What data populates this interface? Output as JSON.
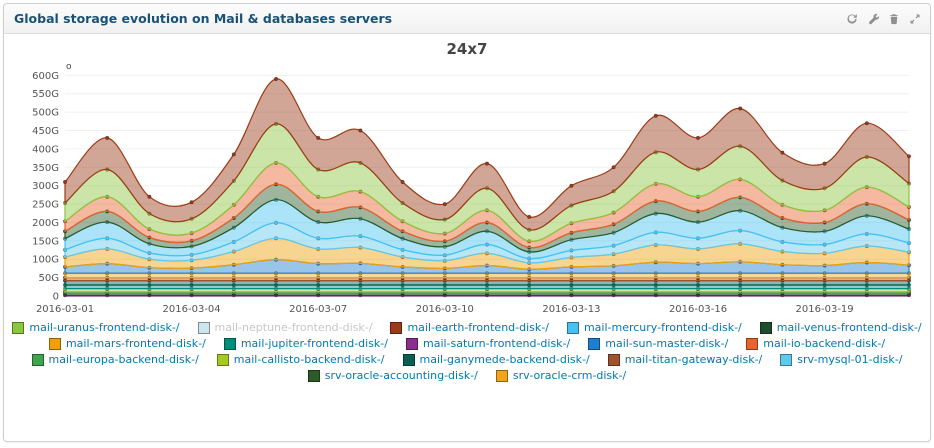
{
  "panel": {
    "title": "Global storage evolution on Mail & databases servers",
    "toolbar_icons": [
      "refresh-icon",
      "wrench-icon",
      "trash-icon",
      "expand-icon"
    ]
  },
  "chart_data": {
    "type": "area",
    "stacked": true,
    "title": "24x7",
    "unit": "G",
    "artifact": "o",
    "grid": false,
    "legend_position": "bottom",
    "legend_rows": [
      5,
      5,
      5,
      2
    ],
    "ylim": [
      0,
      620
    ],
    "y_ticks": [
      0,
      50,
      100,
      150,
      200,
      250,
      300,
      350,
      400,
      450,
      500,
      550,
      600
    ],
    "y_tick_labels": [
      "0",
      "50G",
      "100G",
      "150G",
      "200G",
      "250G",
      "300G",
      "350G",
      "400G",
      "450G",
      "500G",
      "550G",
      "600G"
    ],
    "x": [
      "2016-03-01",
      "2016-03-02",
      "2016-03-03",
      "2016-03-04",
      "2016-03-05",
      "2016-03-06",
      "2016-03-07",
      "2016-03-08",
      "2016-03-09",
      "2016-03-10",
      "2016-03-11",
      "2016-03-12",
      "2016-03-13",
      "2016-03-14",
      "2016-03-15",
      "2016-03-16",
      "2016-03-17",
      "2016-03-18",
      "2016-03-19",
      "2016-03-20",
      "2016-03-21"
    ],
    "x_tick_labels": [
      "2016-03-01",
      "2016-03-04",
      "2016-03-07",
      "2016-03-10",
      "2016-03-13",
      "2016-03-16",
      "2016-03-19"
    ],
    "stack_order": [
      "mail-saturn-frontend-disk-/",
      "mail-venus-frontend-disk-/",
      "mail-europa-backend-disk-/",
      "mail-callisto-backend-disk-/",
      "mail-jupiter-frontend-disk-/",
      "mail-ganymede-backend-disk-/",
      "mail-titan-gateway-disk-/",
      "srv-oracle-crm-disk-/",
      "mail-sun-master-disk-/",
      "mail-mars-frontend-disk-/",
      "srv-mysql-01-disk-/",
      "mail-mercury-frontend-disk-/",
      "srv-oracle-accounting-disk-/",
      "mail-io-backend-disk-/",
      "mail-uranus-frontend-disk-/",
      "mail-earth-frontend-disk-/"
    ],
    "series": [
      {
        "label": "mail-uranus-frontend-disk-/",
        "color": "#8cc63e",
        "hidden": false,
        "values": [
          50,
          74,
          42,
          39,
          65,
          106,
          74,
          78,
          50,
          38,
          60,
          31,
          48,
          58,
          86,
          74,
          90,
          66,
          60,
          82,
          64
        ]
      },
      {
        "label": "mail-neptune-frontend-disk-/",
        "color": "#cfe6ee",
        "hidden": true,
        "values": []
      },
      {
        "label": "mail-earth-frontend-disk-/",
        "color": "#9c3a17",
        "hidden": false,
        "values": [
          57,
          86,
          46,
          45,
          72,
          122,
          86,
          88,
          57,
          42,
          67,
          35,
          54,
          65,
          99,
          86,
          103,
          76,
          67,
          92,
          74
        ]
      },
      {
        "label": "mail-mercury-frontend-disk-/",
        "color": "#45c1f2",
        "hidden": false,
        "values": [
          30,
          44,
          25,
          23,
          39,
          63,
          44,
          47,
          30,
          23,
          36,
          18,
          29,
          35,
          51,
          44,
          54,
          39,
          36,
          49,
          38
        ]
      },
      {
        "label": "mail-venus-frontend-disk-/",
        "color": "#1d4e2c",
        "hidden": false,
        "values": [
          5,
          5,
          5,
          5,
          5,
          5,
          5,
          5,
          5,
          5,
          5,
          5,
          5,
          5,
          5,
          5,
          5,
          5,
          5,
          5,
          5
        ]
      },
      {
        "label": "mail-mars-frontend-disk-/",
        "color": "#efa00b",
        "hidden": false,
        "values": [
          27,
          40,
          23,
          21,
          36,
          58,
          40,
          43,
          27,
          21,
          33,
          17,
          26,
          32,
          47,
          40,
          49,
          36,
          33,
          45,
          35
        ]
      },
      {
        "label": "mail-jupiter-frontend-disk-/",
        "color": "#008d7a",
        "hidden": false,
        "values": [
          10,
          10,
          10,
          10,
          10,
          10,
          10,
          10,
          10,
          10,
          10,
          10,
          10,
          10,
          10,
          10,
          10,
          10,
          10,
          10,
          10
        ]
      },
      {
        "label": "mail-saturn-frontend-disk-/",
        "color": "#8a2d8f",
        "hidden": false,
        "values": [
          2,
          2,
          2,
          2,
          2,
          2,
          2,
          2,
          2,
          2,
          2,
          2,
          2,
          2,
          2,
          2,
          2,
          2,
          2,
          2,
          2
        ]
      },
      {
        "label": "mail-sun-master-disk-/",
        "color": "#1e7fd0",
        "hidden": false,
        "values": [
          17,
          26,
          15,
          14,
          23,
          37,
          26,
          27,
          17,
          13,
          21,
          11,
          17,
          20,
          30,
          26,
          31,
          23,
          21,
          29,
          22
        ]
      },
      {
        "label": "mail-io-backend-disk-/",
        "color": "#e8622d",
        "hidden": false,
        "values": [
          27,
          40,
          23,
          21,
          36,
          58,
          40,
          43,
          27,
          21,
          33,
          17,
          26,
          32,
          47,
          40,
          49,
          36,
          33,
          45,
          35
        ]
      },
      {
        "label": "mail-europa-backend-disk-/",
        "color": "#3fa44e",
        "hidden": false,
        "values": [
          5,
          5,
          5,
          5,
          5,
          5,
          5,
          5,
          5,
          5,
          5,
          5,
          5,
          5,
          5,
          5,
          5,
          5,
          5,
          5,
          5
        ]
      },
      {
        "label": "mail-callisto-backend-disk-/",
        "color": "#a6c922",
        "hidden": false,
        "values": [
          8,
          8,
          8,
          8,
          8,
          8,
          8,
          8,
          8,
          8,
          8,
          8,
          8,
          8,
          8,
          8,
          8,
          8,
          8,
          8,
          8
        ]
      },
      {
        "label": "mail-ganymede-backend-disk-/",
        "color": "#0b5d52",
        "hidden": false,
        "values": [
          12,
          12,
          12,
          12,
          12,
          12,
          12,
          12,
          12,
          12,
          12,
          12,
          12,
          12,
          12,
          12,
          12,
          12,
          12,
          12,
          12
        ]
      },
      {
        "label": "mail-titan-gateway-disk-/",
        "color": "#a0522d",
        "hidden": false,
        "values": [
          8,
          8,
          8,
          8,
          8,
          8,
          8,
          8,
          8,
          8,
          8,
          8,
          8,
          8,
          8,
          8,
          8,
          8,
          8,
          8,
          8
        ]
      },
      {
        "label": "srv-mysql-01-disk-/",
        "color": "#5fc9ee",
        "hidden": false,
        "values": [
          20,
          29,
          17,
          15,
          26,
          42,
          29,
          31,
          20,
          15,
          24,
          12,
          19,
          23,
          34,
          29,
          36,
          26,
          24,
          33,
          25
        ]
      },
      {
        "label": "srv-oracle-accounting-disk-/",
        "color": "#2c5b28",
        "hidden": false,
        "values": [
          20,
          29,
          17,
          15,
          26,
          42,
          29,
          31,
          20,
          15,
          24,
          12,
          19,
          23,
          34,
          29,
          36,
          26,
          24,
          33,
          25
        ]
      },
      {
        "label": "srv-oracle-crm-disk-/",
        "color": "#f2a51c",
        "hidden": false,
        "values": [
          12,
          12,
          12,
          12,
          12,
          12,
          12,
          12,
          12,
          12,
          12,
          12,
          12,
          12,
          12,
          12,
          12,
          12,
          12,
          12,
          12
        ]
      }
    ]
  }
}
